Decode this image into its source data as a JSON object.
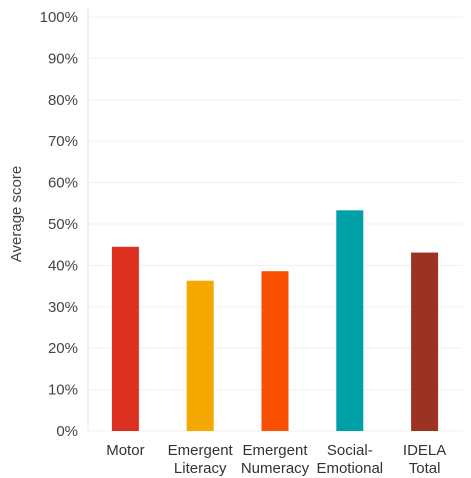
{
  "chart_data": {
    "type": "bar",
    "categories": [
      [
        "Motor"
      ],
      [
        "Emergent",
        "Literacy"
      ],
      [
        "Emergent",
        "Numeracy"
      ],
      [
        "Social-",
        "Emotional"
      ],
      [
        "IDELA",
        "Total"
      ]
    ],
    "values": [
      44.5,
      36.3,
      38.6,
      53.3,
      43.1
    ],
    "colors": [
      "#dc3121",
      "#f4a800",
      "#fb4f00",
      "#00a0a8",
      "#9c3322"
    ],
    "ylabel": "Average score",
    "ylim": [
      0,
      100
    ],
    "yticks": [
      0,
      10,
      20,
      30,
      40,
      50,
      60,
      70,
      80,
      90,
      100
    ],
    "ytick_labels": [
      "0%",
      "10%",
      "20%",
      "30%",
      "40%",
      "50%",
      "60%",
      "70%",
      "80%",
      "90%",
      "100%"
    ],
    "grid": true,
    "legend": "none"
  }
}
